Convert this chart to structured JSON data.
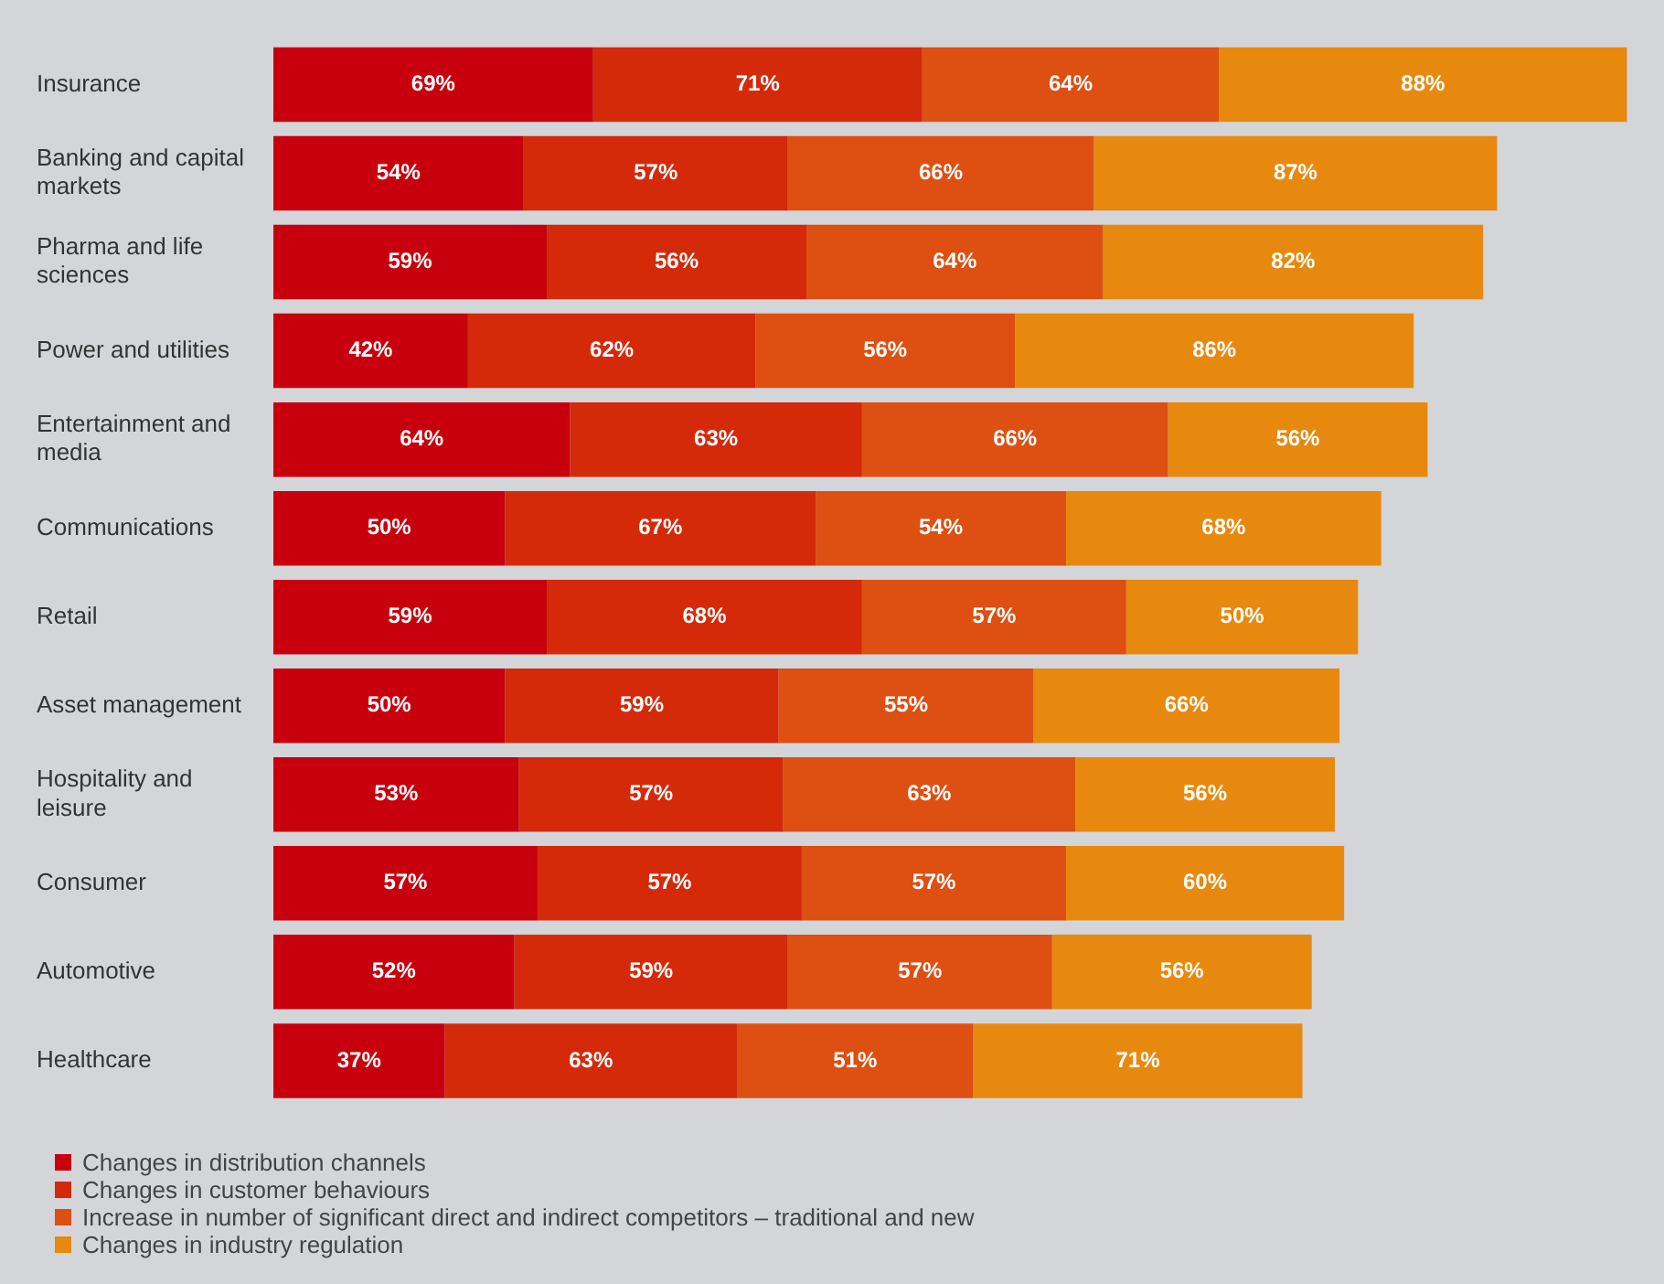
{
  "chart_data": {
    "type": "bar",
    "orientation": "horizontal",
    "stacked": true,
    "legend": "bottom left",
    "tick_labels": "y",
    "categories": [
      "Insurance",
      "Banking and capital markets",
      "Pharma and life sciences",
      "Power and utilities",
      "Entertainment and media",
      "Communications",
      "Retail",
      "Asset management",
      "Hospitality and leisure",
      "Consumer",
      "Automotive",
      "Healthcare"
    ],
    "series": [
      {
        "name": "Changes in distribution channels",
        "color": "#c8000e",
        "values": [
          69,
          54,
          59,
          42,
          64,
          50,
          59,
          50,
          53,
          57,
          52,
          37
        ],
        "value_labels": [
          "69%",
          "54%",
          "59%",
          "42%",
          "64%",
          "50%",
          "59%",
          "50%",
          "53%",
          "57%",
          "52%",
          "37%"
        ]
      },
      {
        "name": "Changes in customer behaviours",
        "color": "#d42a0a",
        "values": [
          71,
          57,
          56,
          62,
          63,
          67,
          68,
          59,
          57,
          57,
          59,
          63
        ],
        "value_labels": [
          "71%",
          "57%",
          "56%",
          "62%",
          "63%",
          "67%",
          "68%",
          "59%",
          "57%",
          "57%",
          "59%",
          "63%"
        ]
      },
      {
        "name": "Increase in number of significant direct and indirect competitors – traditional and new",
        "color": "#de4f12",
        "values": [
          64,
          66,
          64,
          56,
          66,
          54,
          57,
          55,
          63,
          57,
          57,
          51
        ],
        "value_labels": [
          "64%",
          "66%",
          "64%",
          "56%",
          "66%",
          "54%",
          "57%",
          "55%",
          "63%",
          "57%",
          "57%",
          "51%"
        ]
      },
      {
        "name": "Changes in industry regulation",
        "color": "#e8890f",
        "values": [
          88,
          87,
          82,
          86,
          56,
          68,
          50,
          66,
          56,
          60,
          56,
          71
        ],
        "value_labels": [
          "88%",
          "87%",
          "82%",
          "86%",
          "56%",
          "68%",
          "50%",
          "66%",
          "56%",
          "60%",
          "56%",
          "71%"
        ]
      }
    ]
  }
}
